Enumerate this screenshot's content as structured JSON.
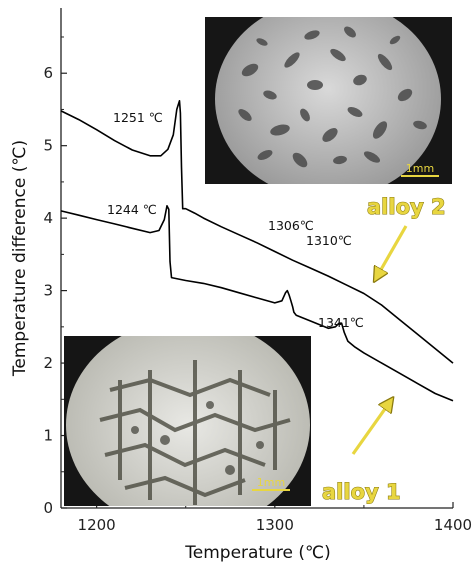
{
  "chart_data": {
    "type": "line",
    "xlabel": "Temperature (℃)",
    "ylabel": "Temperature difference (℃)",
    "xlim": [
      1180,
      1400
    ],
    "ylim": [
      0,
      6.9
    ],
    "xticks": [
      1200,
      1300,
      1400
    ],
    "yticks": [
      0,
      1,
      2,
      3,
      4,
      5,
      6
    ],
    "grid": false,
    "series": [
      {
        "name": "alloy 2",
        "color": "#000000",
        "x": [
          1180,
          1190,
          1200,
          1210,
          1220,
          1230,
          1236,
          1240,
          1243,
          1245,
          1246.5,
          1247,
          1247.6,
          1248.3,
          1250,
          1255,
          1260,
          1270,
          1280,
          1290,
          1300,
          1310,
          1320,
          1330,
          1340,
          1350,
          1360,
          1370,
          1380,
          1390,
          1400
        ],
        "y": [
          5.48,
          5.36,
          5.22,
          5.07,
          4.94,
          4.86,
          4.86,
          4.95,
          5.15,
          5.5,
          5.62,
          5.45,
          4.7,
          4.13,
          4.13,
          4.07,
          4.0,
          3.88,
          3.77,
          3.66,
          3.54,
          3.42,
          3.31,
          3.2,
          3.08,
          2.96,
          2.8,
          2.6,
          2.4,
          2.2,
          2.0
        ]
      },
      {
        "name": "alloy 1",
        "color": "#000000",
        "x": [
          1180,
          1190,
          1200,
          1210,
          1220,
          1230,
          1235,
          1238,
          1239.5,
          1240.5,
          1241.2,
          1242,
          1250,
          1260,
          1270,
          1280,
          1290,
          1300,
          1304,
          1306,
          1307,
          1308,
          1309,
          1310,
          1310.7,
          1312,
          1320,
          1330,
          1334,
          1336,
          1337.5,
          1339,
          1341,
          1345,
          1350,
          1360,
          1370,
          1380,
          1390,
          1400
        ],
        "y": [
          4.1,
          4.04,
          3.98,
          3.92,
          3.86,
          3.8,
          3.83,
          3.98,
          4.17,
          4.12,
          3.4,
          3.18,
          3.14,
          3.1,
          3.04,
          2.97,
          2.9,
          2.83,
          2.86,
          2.97,
          3.0,
          2.94,
          2.86,
          2.78,
          2.7,
          2.66,
          2.58,
          2.48,
          2.5,
          2.55,
          2.55,
          2.42,
          2.3,
          2.22,
          2.14,
          2.0,
          1.86,
          1.72,
          1.58,
          1.48
        ]
      }
    ],
    "annotations": [
      {
        "text": "1251 ℃",
        "x": 1251,
        "y": 5.62
      },
      {
        "text": "1244 ℃",
        "x": 1244,
        "y": 4.17
      },
      {
        "text": "1306℃",
        "x": 1306,
        "y": 3.75
      },
      {
        "text": "1310℃",
        "x": 1310,
        "y": 3.6
      },
      {
        "text": "1341℃",
        "x": 1341,
        "y": 2.5
      }
    ],
    "labels": {
      "alloy2": "alloy 2",
      "alloy1": "alloy 1"
    },
    "insets": [
      {
        "name": "micrograph-alloy-2",
        "scale_bar": "1mm",
        "scale_color": "#e8d640"
      },
      {
        "name": "micrograph-alloy-1",
        "scale_bar": "1mm",
        "scale_color": "#e8d640"
      }
    ]
  }
}
